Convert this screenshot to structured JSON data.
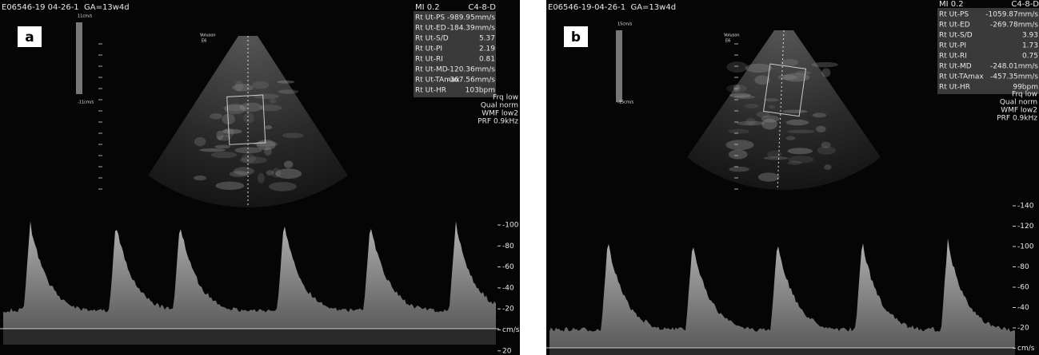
{
  "panels": [
    {
      "label": "a",
      "header": "E06546-19 04-26-1  GA=13w4d",
      "mi": "MI 0.2",
      "probe": "C4-8-D",
      "measurements": [
        [
          "Rt Ut-PS",
          "-989.95mm/s"
        ],
        [
          "Rt Ut-ED",
          "-184.39mm/s"
        ],
        [
          "Rt Ut-S/D",
          "5.37"
        ],
        [
          "Rt Ut-PI",
          "2.19"
        ],
        [
          "Rt Ut-RI",
          "0.81"
        ],
        [
          "Rt Ut-MD",
          "-120.36mm/s"
        ],
        [
          "Rt Ut-TAmax",
          "-367.56mm/s"
        ],
        [
          "Rt Ut-HR",
          "103bpm"
        ]
      ],
      "settings": [
        "Frq low",
        "Qual norm",
        "WMF low2",
        "PRF 0.9kHz"
      ],
      "color_scale": [
        "11cm/s",
        "-11cm/s"
      ],
      "system": [
        "Voluson",
        "E6"
      ],
      "velocity_scale": [
        "-100",
        "-80",
        "-60",
        "-40",
        "-20",
        "cm/s",
        "20"
      ]
    },
    {
      "label": "b",
      "header": "E06546-19-04-26-1  GA=13w4d",
      "mi": "MI 0.2",
      "probe": "C4-8-D",
      "measurements": [
        [
          "Rt Ut-PS",
          "-1059.87mm/s"
        ],
        [
          "Rt Ut-ED",
          "-269.78mm/s"
        ],
        [
          "Rt Ut-S/D",
          "3.93"
        ],
        [
          "Rt Ut-PI",
          "1.73"
        ],
        [
          "Rt Ut-RI",
          "0.75"
        ],
        [
          "Rt Ut-MD",
          "-248.01mm/s"
        ],
        [
          "Rt Ut-TAmax",
          "-457.35mm/s"
        ],
        [
          "Rt Ut-HR",
          "99bpm"
        ]
      ],
      "settings": [
        "Frq low",
        "Qual norm",
        "WMF low2",
        "PRF 0.9kHz"
      ],
      "color_scale": [
        "15cm/s",
        "-15cm/s"
      ],
      "system": [
        "Voluson",
        "E6"
      ],
      "velocity_scale": [
        "-140",
        "-120",
        "-100",
        "-80",
        "-60",
        "-40",
        "-20",
        "cm/s"
      ]
    }
  ]
}
